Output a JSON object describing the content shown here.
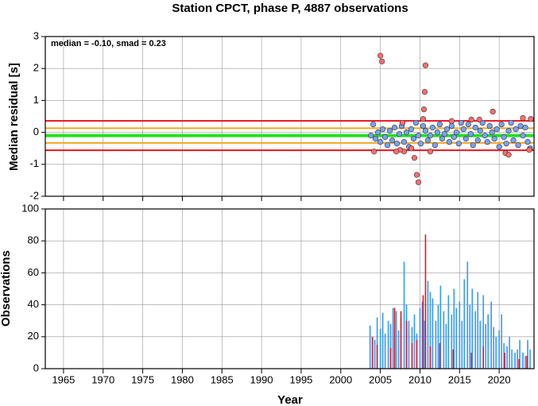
{
  "chart_data": [
    {
      "type": "scatter",
      "title": "Station CPCT, phase P, 4887 observations",
      "y_label": "Median residual [s]",
      "annotation": "median = -0.10, smad = 0.23",
      "xlim": [
        1962.7,
        2024.4
      ],
      "xticks": [
        1965,
        1970,
        1975,
        1980,
        1985,
        1990,
        1995,
        2000,
        2005,
        2010,
        2015,
        2020
      ],
      "ylim": [
        -2,
        3
      ],
      "yticks": [
        -2,
        -1,
        0,
        1,
        2,
        3
      ],
      "grid": true,
      "reference_lines": [
        {
          "value": 0.36,
          "color": "#e8141e"
        },
        {
          "value": -0.56,
          "color": "#e8141e"
        },
        {
          "value": 0.13,
          "color": "#f5a623"
        },
        {
          "value": -0.33,
          "color": "#f5a623"
        },
        {
          "value": -0.1,
          "color": "#22e022"
        }
      ],
      "series": [
        {
          "color": "#7aa2f0",
          "x": [
            2003.8,
            2004.1,
            2004.4,
            2004.7,
            2005.0,
            2005.3,
            2005.6,
            2005.9,
            2006.2,
            2006.5,
            2006.8,
            2007.1,
            2007.4,
            2007.7,
            2008.0,
            2008.3,
            2008.6,
            2008.9,
            2009.2,
            2009.5,
            2009.8,
            2010.1,
            2010.4,
            2010.7,
            2011.0,
            2011.3,
            2011.6,
            2011.9,
            2012.2,
            2012.5,
            2012.8,
            2013.1,
            2013.4,
            2013.7,
            2014.0,
            2014.3,
            2014.6,
            2014.9,
            2015.2,
            2015.5,
            2015.8,
            2016.1,
            2016.4,
            2016.7,
            2017.0,
            2017.3,
            2017.6,
            2017.9,
            2018.2,
            2018.5,
            2018.8,
            2019.1,
            2019.4,
            2019.7,
            2020.0,
            2020.3,
            2020.6,
            2020.9,
            2021.2,
            2021.5,
            2021.8,
            2022.1,
            2022.4,
            2022.7,
            2023.0,
            2023.3,
            2023.6,
            2023.9
          ],
          "values": [
            -0.1,
            0.25,
            -0.2,
            0.0,
            -0.3,
            0.1,
            -0.15,
            -0.4,
            0.05,
            -0.25,
            0.15,
            -0.35,
            -0.05,
            0.2,
            -0.3,
            0.0,
            -0.45,
            0.1,
            -0.2,
            0.3,
            -0.1,
            -0.35,
            0.2,
            0.05,
            -0.25,
            -0.1,
            0.15,
            -0.4,
            0.0,
            0.25,
            -0.2,
            -0.05,
            0.1,
            -0.3,
            0.2,
            -0.15,
            0.0,
            -0.35,
            0.3,
            0.1,
            -0.2,
            0.25,
            -0.05,
            -0.4,
            0.15,
            -0.25,
            0.05,
            0.3,
            -0.1,
            -0.3,
            0.2,
            0.0,
            -0.2,
            0.1,
            -0.45,
            0.25,
            -0.15,
            -0.35,
            0.05,
            0.3,
            -0.25,
            0.1,
            -0.4,
            0.2,
            -0.1,
            0.15,
            -0.3,
            -0.5
          ]
        },
        {
          "color": "#ff6e6e",
          "x": [
            2005.0,
            2005.2,
            2010.7,
            2010.6,
            2010.5,
            2010.4,
            2008.9,
            2008.0,
            2009.3,
            2009.6,
            2009.8,
            2004.2,
            2007.5,
            2007.0,
            2011.3,
            2019.2,
            2016.5,
            2017.5,
            2020.8,
            2021.2,
            2023.0,
            2024.0,
            2023.8,
            2007.8,
            2014.0
          ],
          "values": [
            2.4,
            2.22,
            2.1,
            1.27,
            0.72,
            0.42,
            -0.5,
            -0.6,
            -0.8,
            -1.33,
            -1.56,
            -0.6,
            -0.55,
            -0.6,
            -0.6,
            0.65,
            0.4,
            0.4,
            -0.65,
            -0.7,
            0.45,
            0.42,
            -0.55,
            0.3,
            0.35
          ]
        }
      ]
    },
    {
      "type": "bar",
      "y_label": "Observations",
      "x_label": "Year",
      "xlim": [
        1962.7,
        2024.4
      ],
      "xticks": [
        1965,
        1970,
        1975,
        1980,
        1985,
        1990,
        1995,
        2000,
        2005,
        2010,
        2015,
        2020
      ],
      "ylim": [
        0,
        100
      ],
      "yticks": [
        0,
        20,
        40,
        60,
        80,
        100
      ],
      "grid": true,
      "series": [
        {
          "color": "#3399ff",
          "x": [
            2003.7,
            2004.0,
            2004.3,
            2004.6,
            2005.0,
            2005.3,
            2005.6,
            2006.0,
            2006.3,
            2006.6,
            2007.0,
            2007.3,
            2007.6,
            2008.0,
            2008.3,
            2008.6,
            2009.0,
            2009.3,
            2009.6,
            2010.0,
            2010.3,
            2010.6,
            2011.0,
            2011.3,
            2011.6,
            2012.0,
            2012.3,
            2012.6,
            2013.0,
            2013.3,
            2013.6,
            2014.0,
            2014.3,
            2014.6,
            2015.0,
            2015.3,
            2015.6,
            2016.0,
            2016.3,
            2016.6,
            2017.0,
            2017.3,
            2017.6,
            2018.0,
            2018.3,
            2018.6,
            2019.0,
            2019.3,
            2019.6,
            2020.0,
            2020.3,
            2020.6,
            2021.0,
            2021.3,
            2021.6,
            2022.0,
            2022.3,
            2022.6,
            2023.0,
            2023.3,
            2023.6,
            2023.9
          ],
          "values": [
            27,
            20,
            18,
            32,
            25,
            35,
            22,
            30,
            28,
            38,
            36,
            24,
            32,
            67,
            40,
            30,
            26,
            34,
            22,
            38,
            42,
            30,
            55,
            48,
            44,
            30,
            40,
            52,
            36,
            28,
            46,
            34,
            50,
            38,
            42,
            30,
            56,
            67,
            40,
            50,
            36,
            48,
            30,
            46,
            28,
            34,
            42,
            26,
            20,
            24,
            34,
            16,
            14,
            20,
            12,
            10,
            12,
            18,
            10,
            8,
            18,
            12
          ]
        },
        {
          "color": "#e8141e",
          "x": [
            2004.0,
            2004.6,
            2006.3,
            2006.8,
            2007.6,
            2008.3,
            2009.0,
            2009.6,
            2010.4,
            2010.7,
            2011.3,
            2012.5,
            2014.2,
            2016.5,
            2018.0,
            2020.7,
            2022.5,
            2023.5
          ],
          "values": [
            20,
            15,
            13,
            38,
            36,
            30,
            16,
            18,
            46,
            84,
            14,
            16,
            12,
            10,
            14,
            10,
            6,
            8
          ]
        }
      ]
    }
  ]
}
